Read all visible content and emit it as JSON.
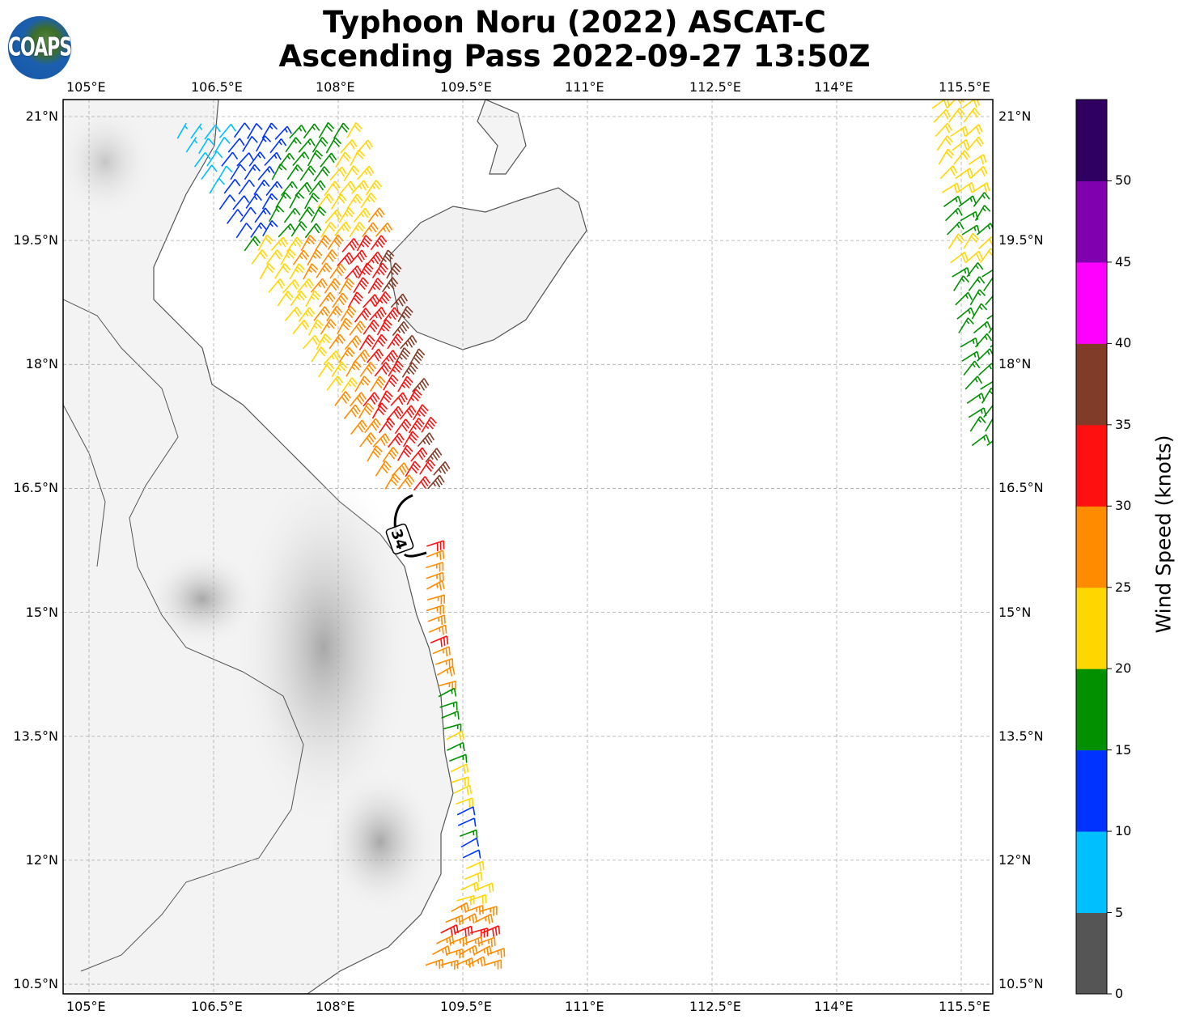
{
  "title": {
    "line1": "Typhoon Noru (2022) ASCAT-C",
    "line2": "Ascending Pass 2022-09-27 13:50Z"
  },
  "logo": {
    "text": "COAPS"
  },
  "map": {
    "lon_ticks": [
      "105°E",
      "106.5°E",
      "108°E",
      "109.5°E",
      "111°E",
      "112.5°E",
      "114°E",
      "115.5°E"
    ],
    "lon_values": [
      105,
      106.5,
      108,
      109.5,
      111,
      112.5,
      114,
      115.5
    ],
    "lat_ticks": [
      "21°N",
      "19.5°N",
      "18°N",
      "16.5°N",
      "15°N",
      "13.5°N",
      "12°N",
      "10.5°N"
    ],
    "lat_values": [
      21,
      19.5,
      18,
      16.5,
      15,
      13.5,
      12,
      10.5
    ],
    "contour_label": "34"
  },
  "colorbar": {
    "label": "Wind Speed (knots)",
    "ticks": [
      "0",
      "5",
      "10",
      "15",
      "20",
      "25",
      "30",
      "35",
      "40",
      "45",
      "50"
    ],
    "bins": [
      0,
      5,
      10,
      15,
      20,
      25,
      30,
      35,
      40,
      45,
      50,
      55
    ],
    "colors": [
      "#555555",
      "#00bfff",
      "#0033ff",
      "#009000",
      "#ffd700",
      "#ff8c00",
      "#ff1010",
      "#803c28",
      "#ff00ff",
      "#8000b0",
      "#300060"
    ]
  }
}
